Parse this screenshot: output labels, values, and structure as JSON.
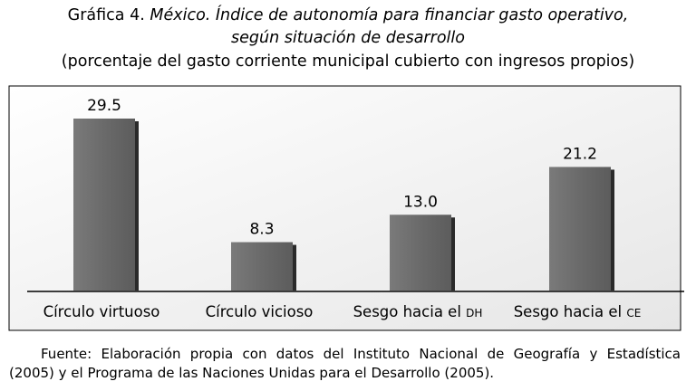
{
  "title": {
    "prefix": "Gráfica 4.",
    "main_italic": "México. Índice de autonomía para financiar gasto operativo,",
    "line2_italic": "según situación de desarrollo",
    "subtitle": "(porcentaje del gasto corriente municipal cubierto con ingresos propios)"
  },
  "chart_data": {
    "type": "bar",
    "categories": [
      "Círculo virtuoso",
      "Círculo vicioso",
      "Sesgo hacia el DH",
      "Sesgo hacia el CE"
    ],
    "category_parts": [
      {
        "main": "Círculo virtuoso",
        "small": ""
      },
      {
        "main": "Círculo vicioso",
        "small": ""
      },
      {
        "main": "Sesgo hacia el ",
        "small": "DH"
      },
      {
        "main": "Sesgo hacia el ",
        "small": "CE"
      }
    ],
    "values": [
      29.5,
      8.3,
      13.0,
      21.2
    ],
    "value_labels": [
      "29.5",
      "8.3",
      "13.0",
      "21.2"
    ],
    "ylim": [
      0,
      35
    ],
    "grid": false,
    "bar_color": "#6a6a6a",
    "shadow_color": "#2a2a2a"
  },
  "source": {
    "line1": "Fuente: Elaboración propia con datos del Instituto Nacional de Geografía y Estadística",
    "line2": "(2005) y el Programa de las Naciones Unidas para el Desarrollo (2005)."
  }
}
